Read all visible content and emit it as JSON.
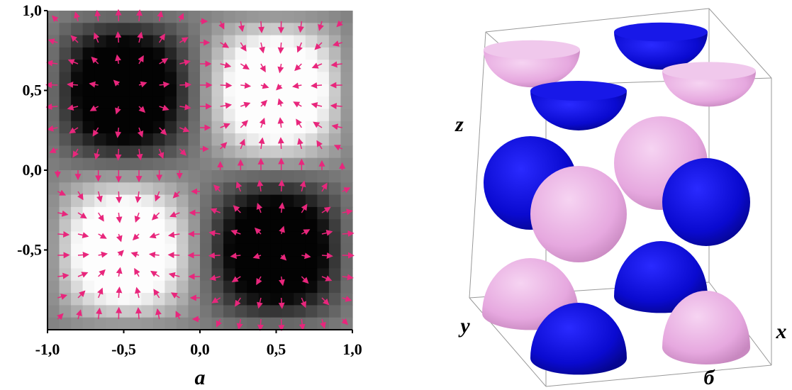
{
  "chart_data": [
    {
      "type": "heatmap",
      "caption": "а",
      "xlim": [
        -1,
        1
      ],
      "ylim": [
        -1,
        1
      ],
      "xticks": [
        {
          "value": -1,
          "label": "-1,0"
        },
        {
          "value": -0.5,
          "label": "-0,5"
        },
        {
          "value": 0,
          "label": "0,0"
        },
        {
          "value": 0.5,
          "label": "0,5"
        },
        {
          "value": 1,
          "label": "1,0"
        }
      ],
      "yticks": [
        {
          "value": -0.5,
          "label": "-0,5"
        },
        {
          "value": 0,
          "label": "0,0"
        },
        {
          "value": 0.5,
          "label": "0,5"
        },
        {
          "value": 1,
          "label": "1,0"
        }
      ],
      "arrow_color": "#e8267c"
    },
    {
      "type": "surface",
      "caption": "б",
      "xlabel": "x",
      "ylabel": "y",
      "zlabel": "z"
    }
  ]
}
